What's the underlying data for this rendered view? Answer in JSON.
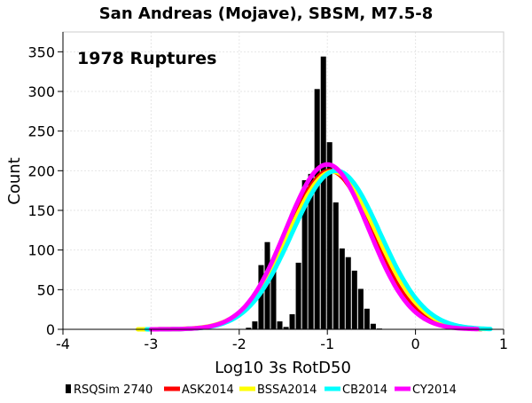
{
  "chart_data": {
    "type": "bar",
    "title": "San Andreas (Mojave), SBSM, M7.5-8",
    "annotation": "1978 Ruptures",
    "xlabel": "Log10 3s RotD50",
    "ylabel": "Count",
    "xlim": [
      -4,
      1
    ],
    "ylim": [
      0,
      375
    ],
    "x_ticks": [
      "-4",
      "-3",
      "-2",
      "-1",
      "0",
      "1"
    ],
    "y_ticks": [
      "0",
      "50",
      "100",
      "150",
      "200",
      "250",
      "300",
      "350"
    ],
    "grid": true,
    "legend_position": "bottom",
    "histogram": {
      "name": "RSQSim 2740",
      "color": "#000000",
      "bin_width": 0.0707,
      "bins": [
        {
          "x": -1.894,
          "count": 2
        },
        {
          "x": -1.823,
          "count": 10
        },
        {
          "x": -1.752,
          "count": 81
        },
        {
          "x": -1.681,
          "count": 110
        },
        {
          "x": -1.611,
          "count": 73
        },
        {
          "x": -1.54,
          "count": 10
        },
        {
          "x": -1.469,
          "count": 3
        },
        {
          "x": -1.399,
          "count": 19
        },
        {
          "x": -1.328,
          "count": 84
        },
        {
          "x": -1.257,
          "count": 188
        },
        {
          "x": -1.187,
          "count": 196
        },
        {
          "x": -1.116,
          "count": 303
        },
        {
          "x": -1.045,
          "count": 344
        },
        {
          "x": -0.975,
          "count": 236
        },
        {
          "x": -0.904,
          "count": 160
        },
        {
          "x": -0.833,
          "count": 102
        },
        {
          "x": -0.763,
          "count": 91
        },
        {
          "x": -0.692,
          "count": 74
        },
        {
          "x": -0.621,
          "count": 51
        },
        {
          "x": -0.551,
          "count": 26
        },
        {
          "x": -0.48,
          "count": 7
        },
        {
          "x": -0.409,
          "count": 1
        }
      ]
    },
    "series": [
      {
        "name": "ASK2014",
        "color": "#ff0000",
        "mean": -0.97,
        "sigma": 0.48,
        "peak": 200,
        "range": [
          -3.05,
          0.75
        ]
      },
      {
        "name": "BSSA2014",
        "color": "#ffff00",
        "mean": -0.94,
        "sigma": 0.5,
        "peak": 199,
        "range": [
          -3.15,
          0.8
        ]
      },
      {
        "name": "CB2014",
        "color": "#00ffff",
        "mean": -0.9,
        "sigma": 0.5,
        "peak": 200,
        "range": [
          -3.05,
          0.85
        ]
      },
      {
        "name": "CY2014",
        "color": "#ff00ff",
        "mean": -1.0,
        "sigma": 0.47,
        "peak": 208,
        "range": [
          -3.0,
          0.7
        ]
      }
    ],
    "legend": [
      "RSQSim 2740",
      "ASK2014",
      "BSSA2014",
      "CB2014",
      "CY2014"
    ]
  }
}
